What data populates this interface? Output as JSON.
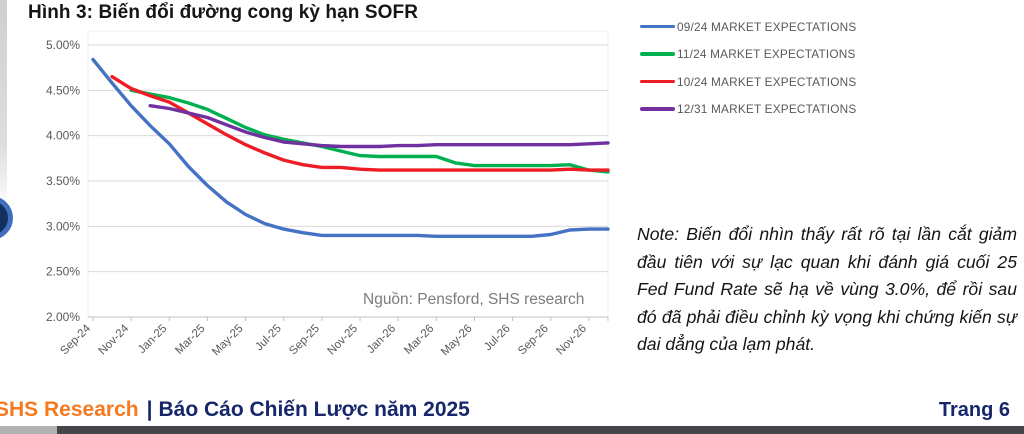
{
  "page": {
    "title": "Hình 3: Biến đổi đường cong kỳ hạn SOFR",
    "source": "Nguồn: Pensford, SHS research",
    "note": "Note: Biến đổi nhìn thấy rất rõ tại lần cắt giảm đầu tiên với sự lạc quan khi đánh giá cuối 25 Fed Fund Rate sẽ hạ về vùng 3.0%, để rồi sau đó đã phải điều chỉnh kỳ vọng khi chứng kiến sự dai dẳng của lạm phát."
  },
  "footer": {
    "brand": "SHS Research",
    "separator": "|",
    "report": "Báo Cáo Chiến Lược năm 2025",
    "page_number": "Trang 6"
  },
  "colors": {
    "blue": "#4472C4",
    "green": "#00B050",
    "red": "#EE1C25",
    "purple": "#7030A0",
    "grid": "#d9d9d9",
    "axis": "#c2c2c2",
    "tick_text": "#595959",
    "accent_orange": "#f47a20",
    "accent_navy": "#16276b"
  },
  "chart_data": {
    "type": "line",
    "title": "",
    "xlabel": "",
    "ylabel": "",
    "ylim": [
      2.0,
      5.0
    ],
    "grid": true,
    "legend_position": "top-right",
    "y_ticks": [
      "5.00%",
      "4.50%",
      "4.00%",
      "3.50%",
      "3.00%",
      "2.50%",
      "2.00%"
    ],
    "y_tick_values": [
      5.0,
      4.5,
      4.0,
      3.5,
      3.0,
      2.5,
      2.0
    ],
    "x": [
      "Sep-24",
      "Oct-24",
      "Nov-24",
      "Dec-24",
      "Jan-25",
      "Feb-25",
      "Mar-25",
      "Apr-25",
      "May-25",
      "Jun-25",
      "Jul-25",
      "Aug-25",
      "Sep-25",
      "Oct-25",
      "Nov-25",
      "Dec-25",
      "Jan-26",
      "Feb-26",
      "Mar-26",
      "Apr-26",
      "May-26",
      "Jun-26",
      "Jul-26",
      "Aug-26",
      "Sep-26",
      "Oct-26",
      "Nov-26",
      "Dec-26"
    ],
    "x_tick_labels": [
      "Sep-24",
      "Nov-24",
      "Jan-25",
      "Mar-25",
      "May-25",
      "Jul-25",
      "Sep-25",
      "Nov-25",
      "Jan-26",
      "Mar-26",
      "May-26",
      "Jul-26",
      "Sep-26",
      "Nov-26"
    ],
    "series": [
      {
        "name": "09/24 MARKET EXPECTATIONS",
        "color": "#4472C4",
        "values": [
          4.84,
          4.58,
          4.33,
          4.11,
          3.91,
          3.66,
          3.45,
          3.27,
          3.13,
          3.03,
          2.97,
          2.93,
          2.9,
          2.9,
          2.9,
          2.9,
          2.9,
          2.9,
          2.89,
          2.89,
          2.89,
          2.89,
          2.89,
          2.89,
          2.91,
          2.96,
          2.97,
          2.97
        ]
      },
      {
        "name": "11/24 MARKET EXPECTATIONS",
        "color": "#00B050",
        "values": [
          null,
          null,
          4.5,
          4.46,
          4.42,
          4.36,
          4.29,
          4.19,
          4.09,
          4.01,
          3.96,
          3.92,
          3.88,
          3.83,
          3.78,
          3.77,
          3.77,
          3.77,
          3.77,
          3.7,
          3.67,
          3.67,
          3.67,
          3.67,
          3.67,
          3.68,
          3.62,
          3.6
        ]
      },
      {
        "name": "10/24 MARKET EXPECTATIONS",
        "color": "#EE1C25",
        "values": [
          null,
          4.65,
          4.52,
          4.44,
          4.37,
          4.25,
          4.13,
          4.01,
          3.9,
          3.81,
          3.73,
          3.68,
          3.65,
          3.65,
          3.63,
          3.62,
          3.62,
          3.62,
          3.62,
          3.62,
          3.62,
          3.62,
          3.62,
          3.62,
          3.62,
          3.63,
          3.62,
          3.62
        ]
      },
      {
        "name": "12/31 MARKET EXPECTATIONS",
        "color": "#7030A0",
        "values": [
          null,
          null,
          null,
          4.33,
          4.3,
          4.25,
          4.2,
          4.12,
          4.04,
          3.98,
          3.93,
          3.91,
          3.89,
          3.88,
          3.88,
          3.88,
          3.89,
          3.89,
          3.9,
          3.9,
          3.9,
          3.9,
          3.9,
          3.9,
          3.9,
          3.9,
          3.91,
          3.92
        ]
      }
    ]
  }
}
